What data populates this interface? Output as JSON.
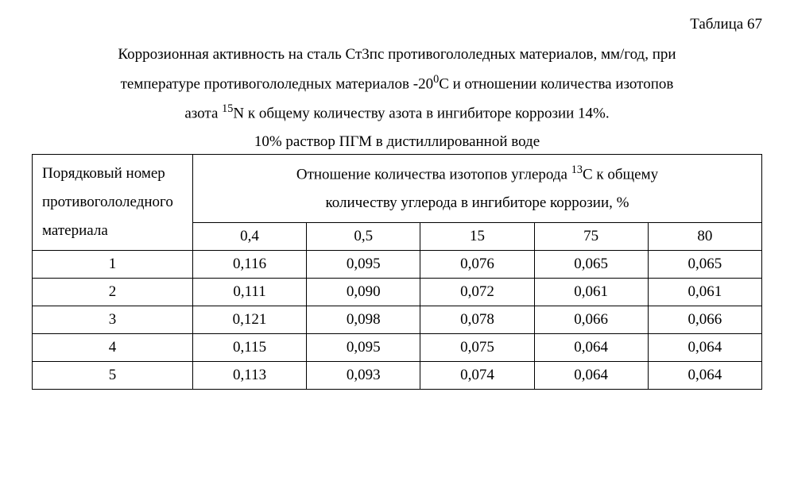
{
  "table_number": "Таблица 67",
  "caption_line1": "Коррозионная активность на сталь Ст3пс противогололедных материалов, мм/год, при",
  "caption_line2_a": "температуре противогололедных материалов -20",
  "caption_line2_sup": "0",
  "caption_line2_b": "С и отношении количества изотопов",
  "caption_line3_a": "азота ",
  "caption_line3_sup": "15",
  "caption_line3_b": "N к общему количеству азота в ингибиторе коррозии 14%.",
  "solution_line": "10% раствор ПГМ в дистиллированной воде",
  "table": {
    "row_header_l1": "Порядковый номер",
    "row_header_l2": "противогололедного",
    "row_header_l3": "материала",
    "group_header_l1a": "Отношение количества изотопов углерода ",
    "group_header_sup": "13",
    "group_header_l1b": "С к общему",
    "group_header_l2": "количеству углерода в ингибиторе коррозии, %",
    "columns": [
      "0,4",
      "0,5",
      "15",
      "75",
      "80"
    ],
    "rows": [
      {
        "num": "1",
        "cells": [
          "0,116",
          "0,095",
          "0,076",
          "0,065",
          "0,065"
        ]
      },
      {
        "num": "2",
        "cells": [
          "0,111",
          "0,090",
          "0,072",
          "0,061",
          "0,061"
        ]
      },
      {
        "num": "3",
        "cells": [
          "0,121",
          "0,098",
          "0,078",
          "0,066",
          "0,066"
        ]
      },
      {
        "num": "4",
        "cells": [
          "0,115",
          "0,095",
          "0,075",
          "0,064",
          "0,064"
        ]
      },
      {
        "num": "5",
        "cells": [
          "0,113",
          "0,093",
          "0,074",
          "0,064",
          "0,064"
        ]
      }
    ]
  }
}
